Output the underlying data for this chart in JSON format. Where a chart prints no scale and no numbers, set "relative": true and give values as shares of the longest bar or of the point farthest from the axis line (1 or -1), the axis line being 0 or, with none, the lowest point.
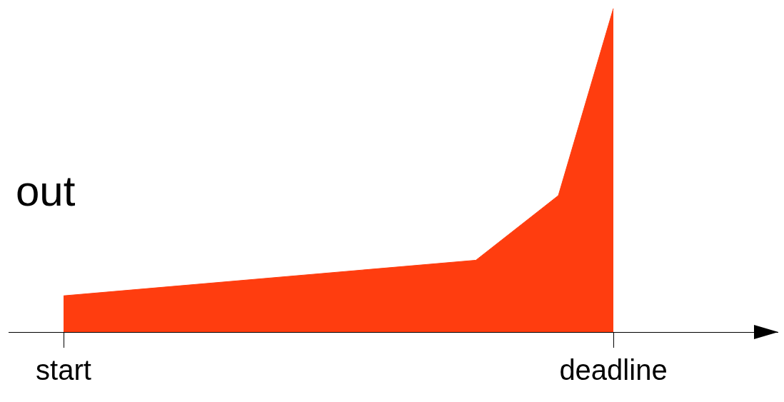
{
  "chart_data": {
    "type": "area",
    "relative": true,
    "ylabel": "out",
    "categories": [
      "start",
      null,
      null,
      null,
      null,
      null,
      null,
      null,
      null,
      null,
      null,
      null,
      null,
      null,
      null,
      null,
      null,
      null,
      null,
      null,
      "deadline"
    ],
    "values": [
      0.112,
      null,
      null,
      null,
      null,
      null,
      null,
      null,
      null,
      null,
      null,
      null,
      null,
      null,
      null,
      0.222,
      null,
      null,
      0.422,
      null,
      1
    ],
    "color": "#ff3d0f",
    "grid": false,
    "legend": false
  }
}
